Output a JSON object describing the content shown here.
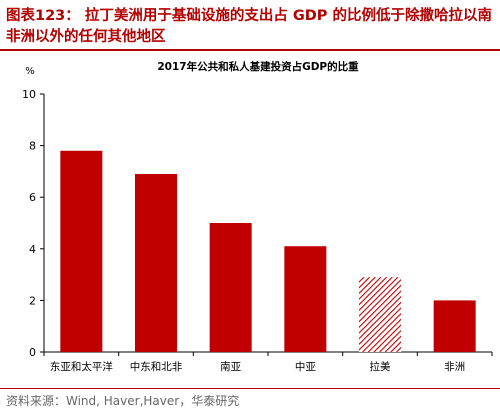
{
  "figure": {
    "title": "图表123：  拉丁美洲用于基础设施的支出占 GDP 的比例低于除撒哈拉以南非洲以外的任何其他地区",
    "source": "资料来源：Wind, Haver,Haver，华泰研究"
  },
  "chart_data": {
    "type": "bar",
    "title": "2017年公共和私人基建投资占GDP的比重",
    "ylabel": "%",
    "xlabel": "",
    "ylim": [
      0,
      10
    ],
    "yticks": [
      0,
      2,
      4,
      6,
      8,
      10
    ],
    "categories": [
      "东亚和太平洋",
      "中东和北非",
      "南亚",
      "中亚",
      "拉美",
      "非洲"
    ],
    "values": [
      7.8,
      6.9,
      5.0,
      4.1,
      2.9,
      2.0
    ],
    "highlighted_category": "拉美",
    "grid": false,
    "colors": {
      "bar": "#c00000",
      "highlight": "#c00000",
      "axis": "#000000",
      "title_text": "#b30000"
    }
  }
}
